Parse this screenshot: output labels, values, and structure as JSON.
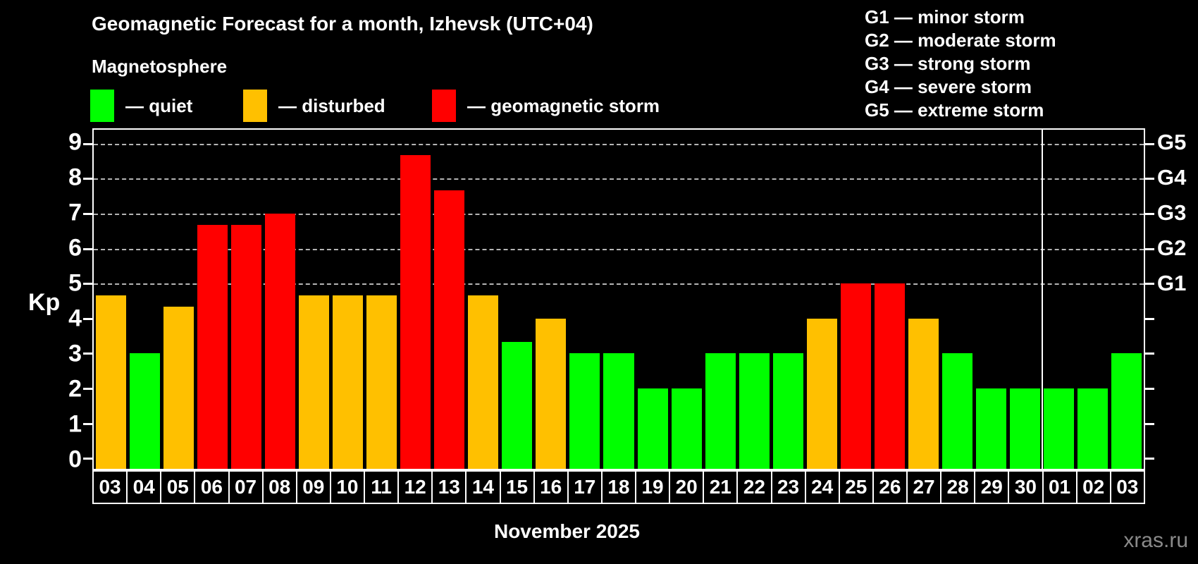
{
  "header": {
    "title": "Geomagnetic Forecast for a month, Izhevsk (UTC+04)",
    "subtitle": "Magnetosphere"
  },
  "legend": {
    "items": [
      {
        "name": "quiet",
        "label": "— quiet",
        "color": "#00ff00"
      },
      {
        "name": "disturbed",
        "label": "— disturbed",
        "color": "#ffc000"
      },
      {
        "name": "storm",
        "label": "— geomagnetic storm",
        "color": "#ff0000"
      }
    ]
  },
  "storm_scale_legend": {
    "lines": [
      "G1 — minor storm",
      "G2 — moderate storm",
      "G3 — strong storm",
      "G4 — severe storm",
      "G5 — extreme storm"
    ]
  },
  "chart_data": {
    "type": "bar",
    "title": "Geomagnetic Forecast for a month, Izhevsk (UTC+04)",
    "ylabel": "Kp",
    "xlabel": "November 2025",
    "ylim": [
      0,
      9
    ],
    "y_view_range": [
      -0.3,
      9.4
    ],
    "yticks": [
      0,
      1,
      2,
      3,
      4,
      5,
      6,
      7,
      8,
      9
    ],
    "gridlines_at": [
      5,
      6,
      7,
      8,
      9
    ],
    "grid_style": "dashed horizontal lines at storm levels G1–G5",
    "legend_position": "top",
    "right_axis": [
      {
        "kp": 5,
        "label": "G1"
      },
      {
        "kp": 6,
        "label": "G2"
      },
      {
        "kp": 7,
        "label": "G3"
      },
      {
        "kp": 8,
        "label": "G4"
      },
      {
        "kp": 9,
        "label": "G5"
      }
    ],
    "categories": [
      "03",
      "04",
      "05",
      "06",
      "07",
      "08",
      "09",
      "10",
      "11",
      "12",
      "13",
      "14",
      "15",
      "16",
      "17",
      "18",
      "19",
      "20",
      "21",
      "22",
      "23",
      "24",
      "25",
      "26",
      "27",
      "28",
      "29",
      "30",
      "01",
      "02",
      "03"
    ],
    "month_separator_after_index": 27,
    "series": [
      {
        "name": "Kp forecast",
        "values": [
          4.67,
          3,
          4.33,
          6.67,
          6.67,
          7,
          4.67,
          4.67,
          4.67,
          8.67,
          7.67,
          4.67,
          3.33,
          4,
          3,
          3,
          2,
          2,
          3,
          3,
          3,
          4,
          5,
          5,
          4,
          3,
          2,
          2,
          2,
          2,
          3
        ]
      }
    ],
    "statuses": [
      "disturbed",
      "quiet",
      "disturbed",
      "storm",
      "storm",
      "storm",
      "disturbed",
      "disturbed",
      "disturbed",
      "storm",
      "storm",
      "disturbed",
      "quiet",
      "disturbed",
      "quiet",
      "quiet",
      "quiet",
      "quiet",
      "quiet",
      "quiet",
      "quiet",
      "disturbed",
      "storm",
      "storm",
      "disturbed",
      "quiet",
      "quiet",
      "quiet",
      "quiet",
      "quiet",
      "quiet"
    ],
    "status_colors": {
      "quiet": "#00ff00",
      "disturbed": "#ffc000",
      "storm": "#ff0000"
    }
  },
  "footer": {
    "xaxis_title": "November 2025",
    "watermark": "xras.ru"
  }
}
